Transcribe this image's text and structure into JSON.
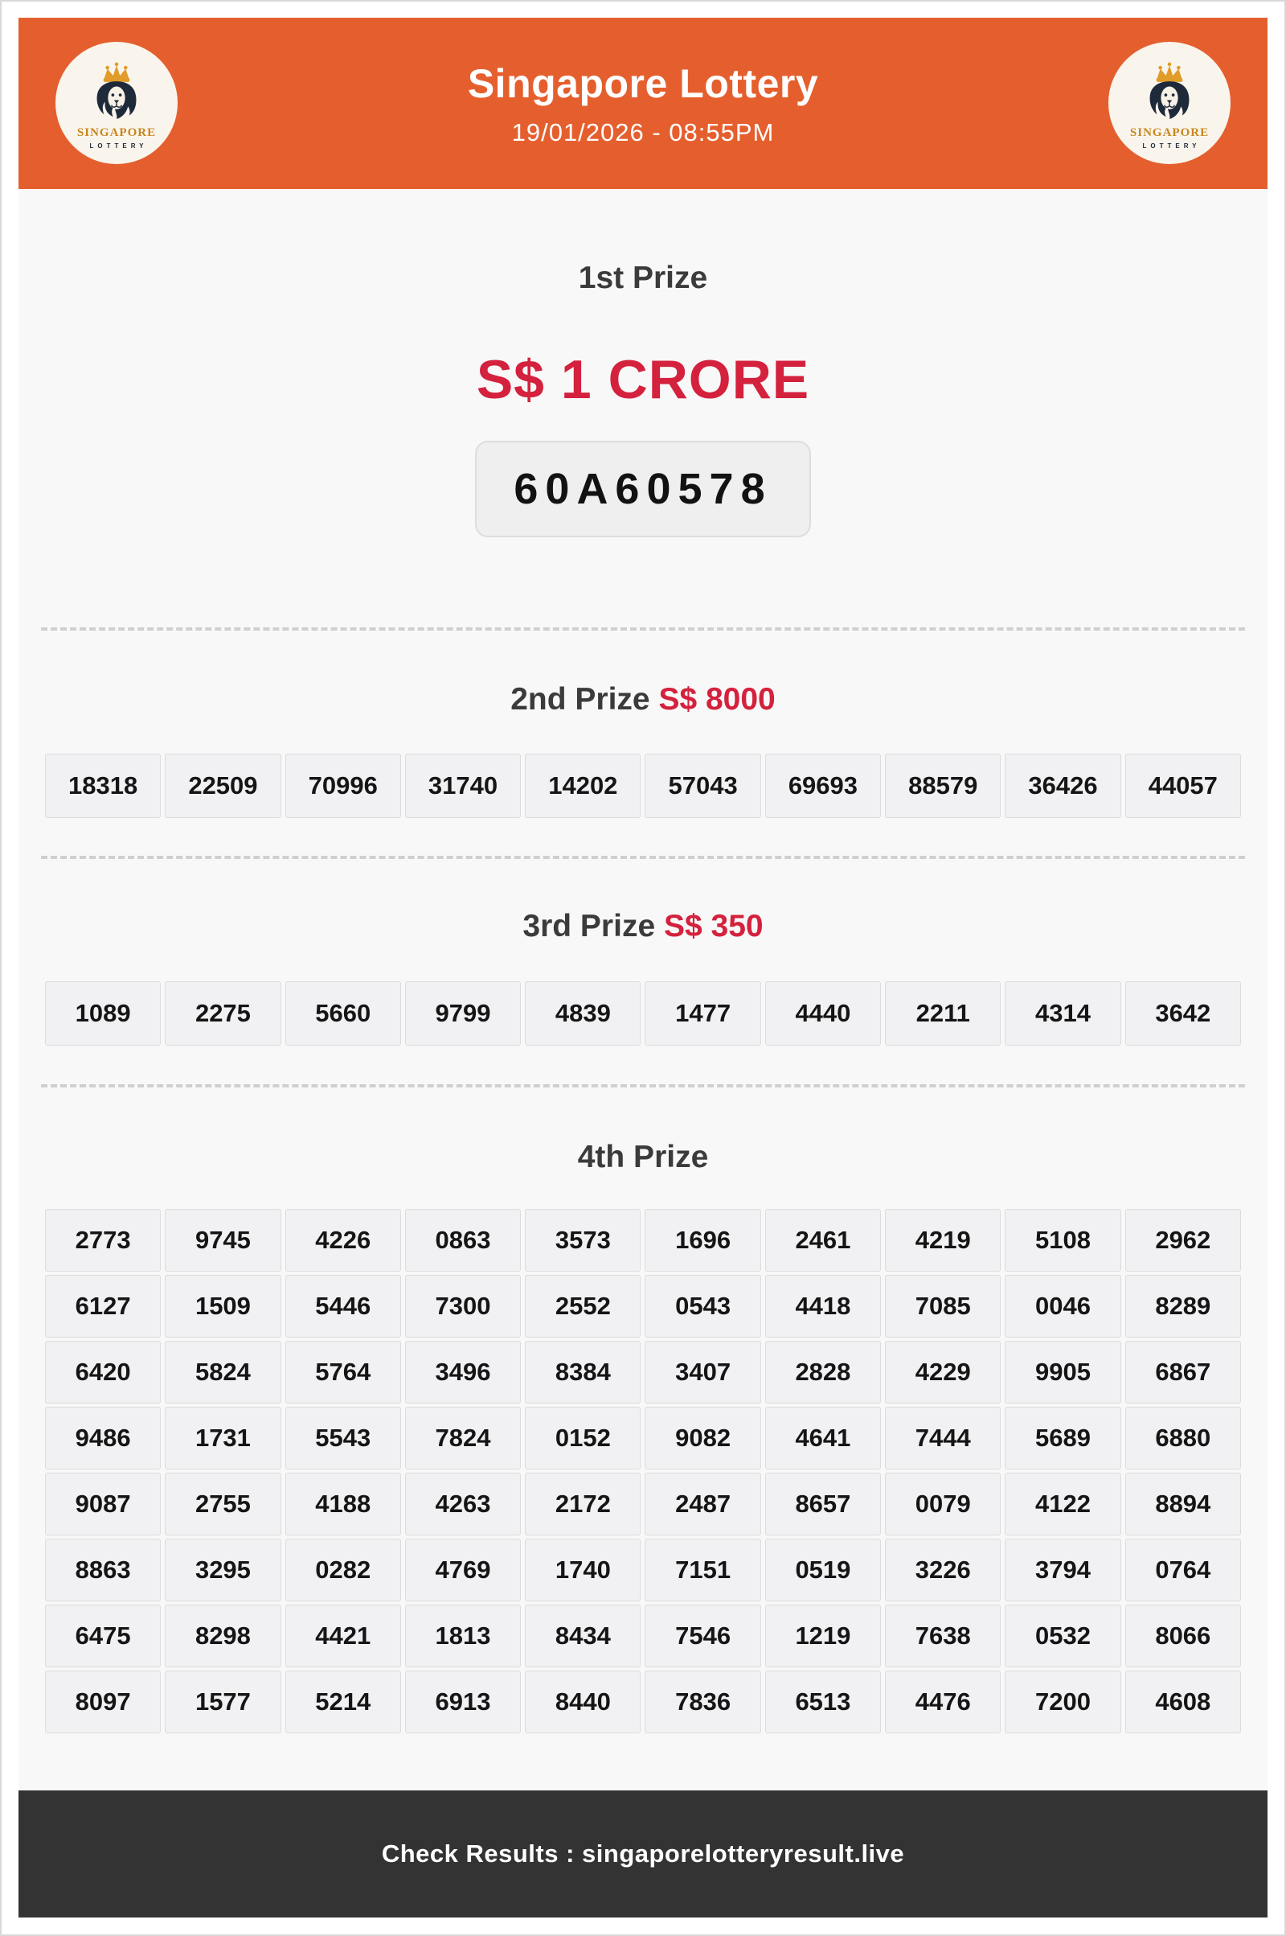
{
  "header": {
    "title": "Singapore Lottery",
    "datetime": "19/01/2026 - 08:55PM",
    "logo": {
      "line1": "SINGAPORE",
      "line2": "LOTTERY"
    }
  },
  "colors": {
    "header_orange": "#e55f2e",
    "prize_red": "#d4213d",
    "footer_dark": "#333333",
    "lion_navy": "#1e2a3a",
    "crown_gold": "#e09b28"
  },
  "prizes": {
    "first": {
      "label": "1st Prize",
      "amount": "S$ 1 CRORE",
      "number": "60A60578"
    },
    "second": {
      "label": "2nd Prize",
      "amount": "S$ 8000",
      "numbers": [
        "18318",
        "22509",
        "70996",
        "31740",
        "14202",
        "57043",
        "69693",
        "88579",
        "36426",
        "44057"
      ]
    },
    "third": {
      "label": "3rd Prize",
      "amount": "S$ 350",
      "numbers": [
        "1089",
        "2275",
        "5660",
        "9799",
        "4839",
        "1477",
        "4440",
        "2211",
        "4314",
        "3642"
      ]
    },
    "fourth": {
      "label": "4th Prize",
      "rows": [
        [
          "2773",
          "9745",
          "4226",
          "0863",
          "3573",
          "1696",
          "2461",
          "4219",
          "5108",
          "2962"
        ],
        [
          "6127",
          "1509",
          "5446",
          "7300",
          "2552",
          "0543",
          "4418",
          "7085",
          "0046",
          "8289"
        ],
        [
          "6420",
          "5824",
          "5764",
          "3496",
          "8384",
          "3407",
          "2828",
          "4229",
          "9905",
          "6867"
        ],
        [
          "9486",
          "1731",
          "5543",
          "7824",
          "0152",
          "9082",
          "4641",
          "7444",
          "5689",
          "6880"
        ],
        [
          "9087",
          "2755",
          "4188",
          "4263",
          "2172",
          "2487",
          "8657",
          "0079",
          "4122",
          "8894"
        ],
        [
          "8863",
          "3295",
          "0282",
          "4769",
          "1740",
          "7151",
          "0519",
          "3226",
          "3794",
          "0764"
        ],
        [
          "6475",
          "8298",
          "4421",
          "1813",
          "8434",
          "7546",
          "1219",
          "7638",
          "0532",
          "8066"
        ],
        [
          "8097",
          "1577",
          "5214",
          "6913",
          "8440",
          "7836",
          "6513",
          "4476",
          "7200",
          "4608"
        ]
      ]
    }
  },
  "footer": {
    "text": "Check Results : singaporelotteryresult.live"
  }
}
